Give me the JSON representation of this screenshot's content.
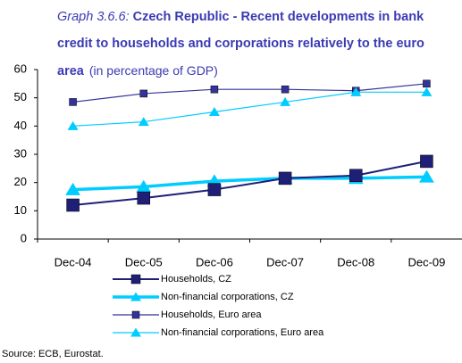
{
  "chart_data": {
    "type": "line",
    "title_label": "Graph 3.6.6:",
    "title": "Czech Republic - Recent developments in bank credit to households and corporations relatively to the euro area",
    "subtitle": "(in percentage of GDP)",
    "categories": [
      "Dec-04",
      "Dec-05",
      "Dec-06",
      "Dec-07",
      "Dec-08",
      "Dec-09"
    ],
    "series": [
      {
        "name": "Households, CZ",
        "color": "#1f1f78",
        "marker": "square",
        "values": [
          12,
          14.5,
          17.5,
          21.5,
          22.5,
          27.5
        ]
      },
      {
        "name": "Non-financial corporations, CZ",
        "color": "#00ccff",
        "marker": "triangle",
        "values": [
          17.5,
          18.5,
          20.5,
          21.5,
          21.5,
          22
        ]
      },
      {
        "name": "Households, Euro area",
        "color": "#333399",
        "marker": "square",
        "values": [
          48.5,
          51.5,
          53,
          53,
          52.5,
          55
        ]
      },
      {
        "name": "Non-financial corporations, Euro area",
        "color": "#00ccff",
        "marker": "triangle",
        "values": [
          40,
          41.5,
          45,
          48.5,
          52,
          52
        ]
      }
    ],
    "ylim": [
      0,
      60
    ],
    "yticks": [
      0,
      10,
      20,
      30,
      40,
      50,
      60
    ],
    "source": "Source: ECB, Eurostat."
  }
}
